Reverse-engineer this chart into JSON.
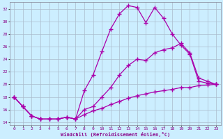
{
  "xlabel": "Windchill (Refroidissement éolien,°C)",
  "xlim": [
    -0.5,
    23.5
  ],
  "ylim": [
    13.5,
    33
  ],
  "xticks": [
    0,
    1,
    2,
    3,
    4,
    5,
    6,
    7,
    8,
    9,
    10,
    11,
    12,
    13,
    14,
    15,
    16,
    17,
    18,
    19,
    20,
    21,
    22,
    23
  ],
  "yticks": [
    14,
    16,
    18,
    20,
    22,
    24,
    26,
    28,
    30,
    32
  ],
  "bg_color": "#cceeff",
  "line_color": "#aa00aa",
  "grid_color": "#aabbcc",
  "line1_x": [
    0,
    1,
    2,
    3,
    4,
    5,
    6,
    7,
    8,
    9,
    10,
    11,
    12,
    13,
    14,
    15,
    16,
    17,
    18,
    19,
    20,
    21,
    22,
    23
  ],
  "line1_y": [
    18.0,
    16.5,
    15.0,
    14.5,
    14.5,
    14.5,
    14.8,
    14.5,
    19.0,
    21.5,
    25.2,
    28.8,
    31.2,
    32.5,
    32.2,
    29.8,
    32.2,
    30.5,
    28.0,
    26.2,
    24.8,
    20.5,
    20.2,
    20.0
  ],
  "line2_x": [
    0,
    1,
    2,
    3,
    4,
    5,
    6,
    7,
    8,
    9,
    10,
    11,
    12,
    13,
    14,
    15,
    16,
    17,
    18,
    19,
    20,
    21,
    22,
    23
  ],
  "line2_y": [
    18.0,
    16.5,
    15.0,
    14.5,
    14.5,
    14.5,
    14.8,
    14.5,
    16.0,
    16.5,
    18.0,
    19.5,
    21.5,
    23.0,
    24.0,
    23.8,
    25.0,
    25.5,
    25.8,
    26.5,
    25.0,
    21.0,
    20.5,
    20.0
  ],
  "line3_x": [
    0,
    1,
    2,
    3,
    4,
    5,
    6,
    7,
    8,
    9,
    10,
    11,
    12,
    13,
    14,
    15,
    16,
    17,
    18,
    19,
    20,
    21,
    22,
    23
  ],
  "line3_y": [
    18.0,
    16.5,
    15.0,
    14.5,
    14.5,
    14.5,
    14.8,
    14.5,
    15.2,
    15.8,
    16.2,
    16.8,
    17.3,
    17.8,
    18.2,
    18.5,
    18.8,
    19.0,
    19.2,
    19.5,
    19.5,
    19.8,
    19.9,
    20.0
  ]
}
